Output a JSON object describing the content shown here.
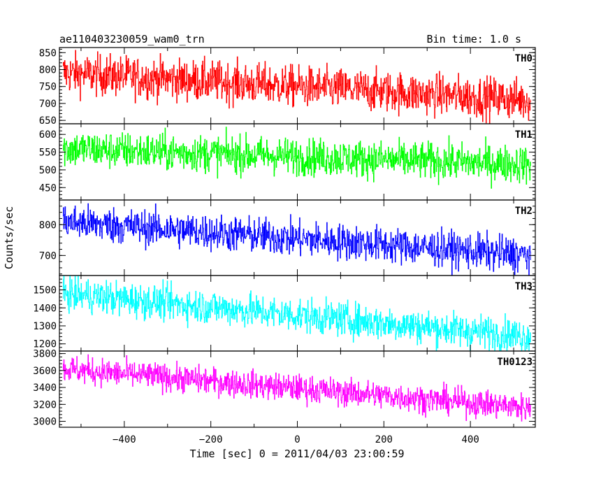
{
  "header": {
    "title": "ae110403230059_wam0_trn",
    "bin_time": "Bin time: 1.0 s"
  },
  "axes": {
    "xlabel": "Time [sec] 0 = 2011/04/03 23:00:59",
    "ylabel": "Counts/sec",
    "xlim": [
      -550,
      550
    ],
    "xticks": [
      -400,
      -200,
      0,
      200,
      400
    ],
    "xtick_labels": [
      "−400",
      "−200",
      "0",
      "200",
      "400"
    ]
  },
  "chart_data": {
    "type": "line",
    "x": {
      "start": -541,
      "end": 540,
      "step": 1
    },
    "series": [
      {
        "name": "TH0",
        "color": "#ff0000",
        "ylim": [
          640,
          865
        ],
        "yticks": [
          650,
          700,
          750,
          800,
          850
        ],
        "trend": [
          790,
          710
        ],
        "noise": 60
      },
      {
        "name": "TH1",
        "color": "#00ff00",
        "ylim": [
          415,
          630
        ],
        "yticks": [
          450,
          500,
          550,
          600
        ],
        "trend": [
          560,
          515
        ],
        "noise": 52
      },
      {
        "name": "TH2",
        "color": "#0000ff",
        "ylim": [
          635,
          880
        ],
        "yticks": [
          700,
          800
        ],
        "trend": [
          810,
          700
        ],
        "noise": 58
      },
      {
        "name": "TH3",
        "color": "#00ffff",
        "ylim": [
          1160,
          1580
        ],
        "yticks": [
          1200,
          1300,
          1400,
          1500
        ],
        "trend": [
          1480,
          1240
        ],
        "noise": 95
      },
      {
        "name": "TH0123",
        "color": "#ff00ff",
        "ylim": [
          2930,
          3830
        ],
        "yticks": [
          3000,
          3200,
          3400,
          3600,
          3800
        ],
        "trend": [
          3620,
          3160
        ],
        "noise": 160
      }
    ]
  }
}
